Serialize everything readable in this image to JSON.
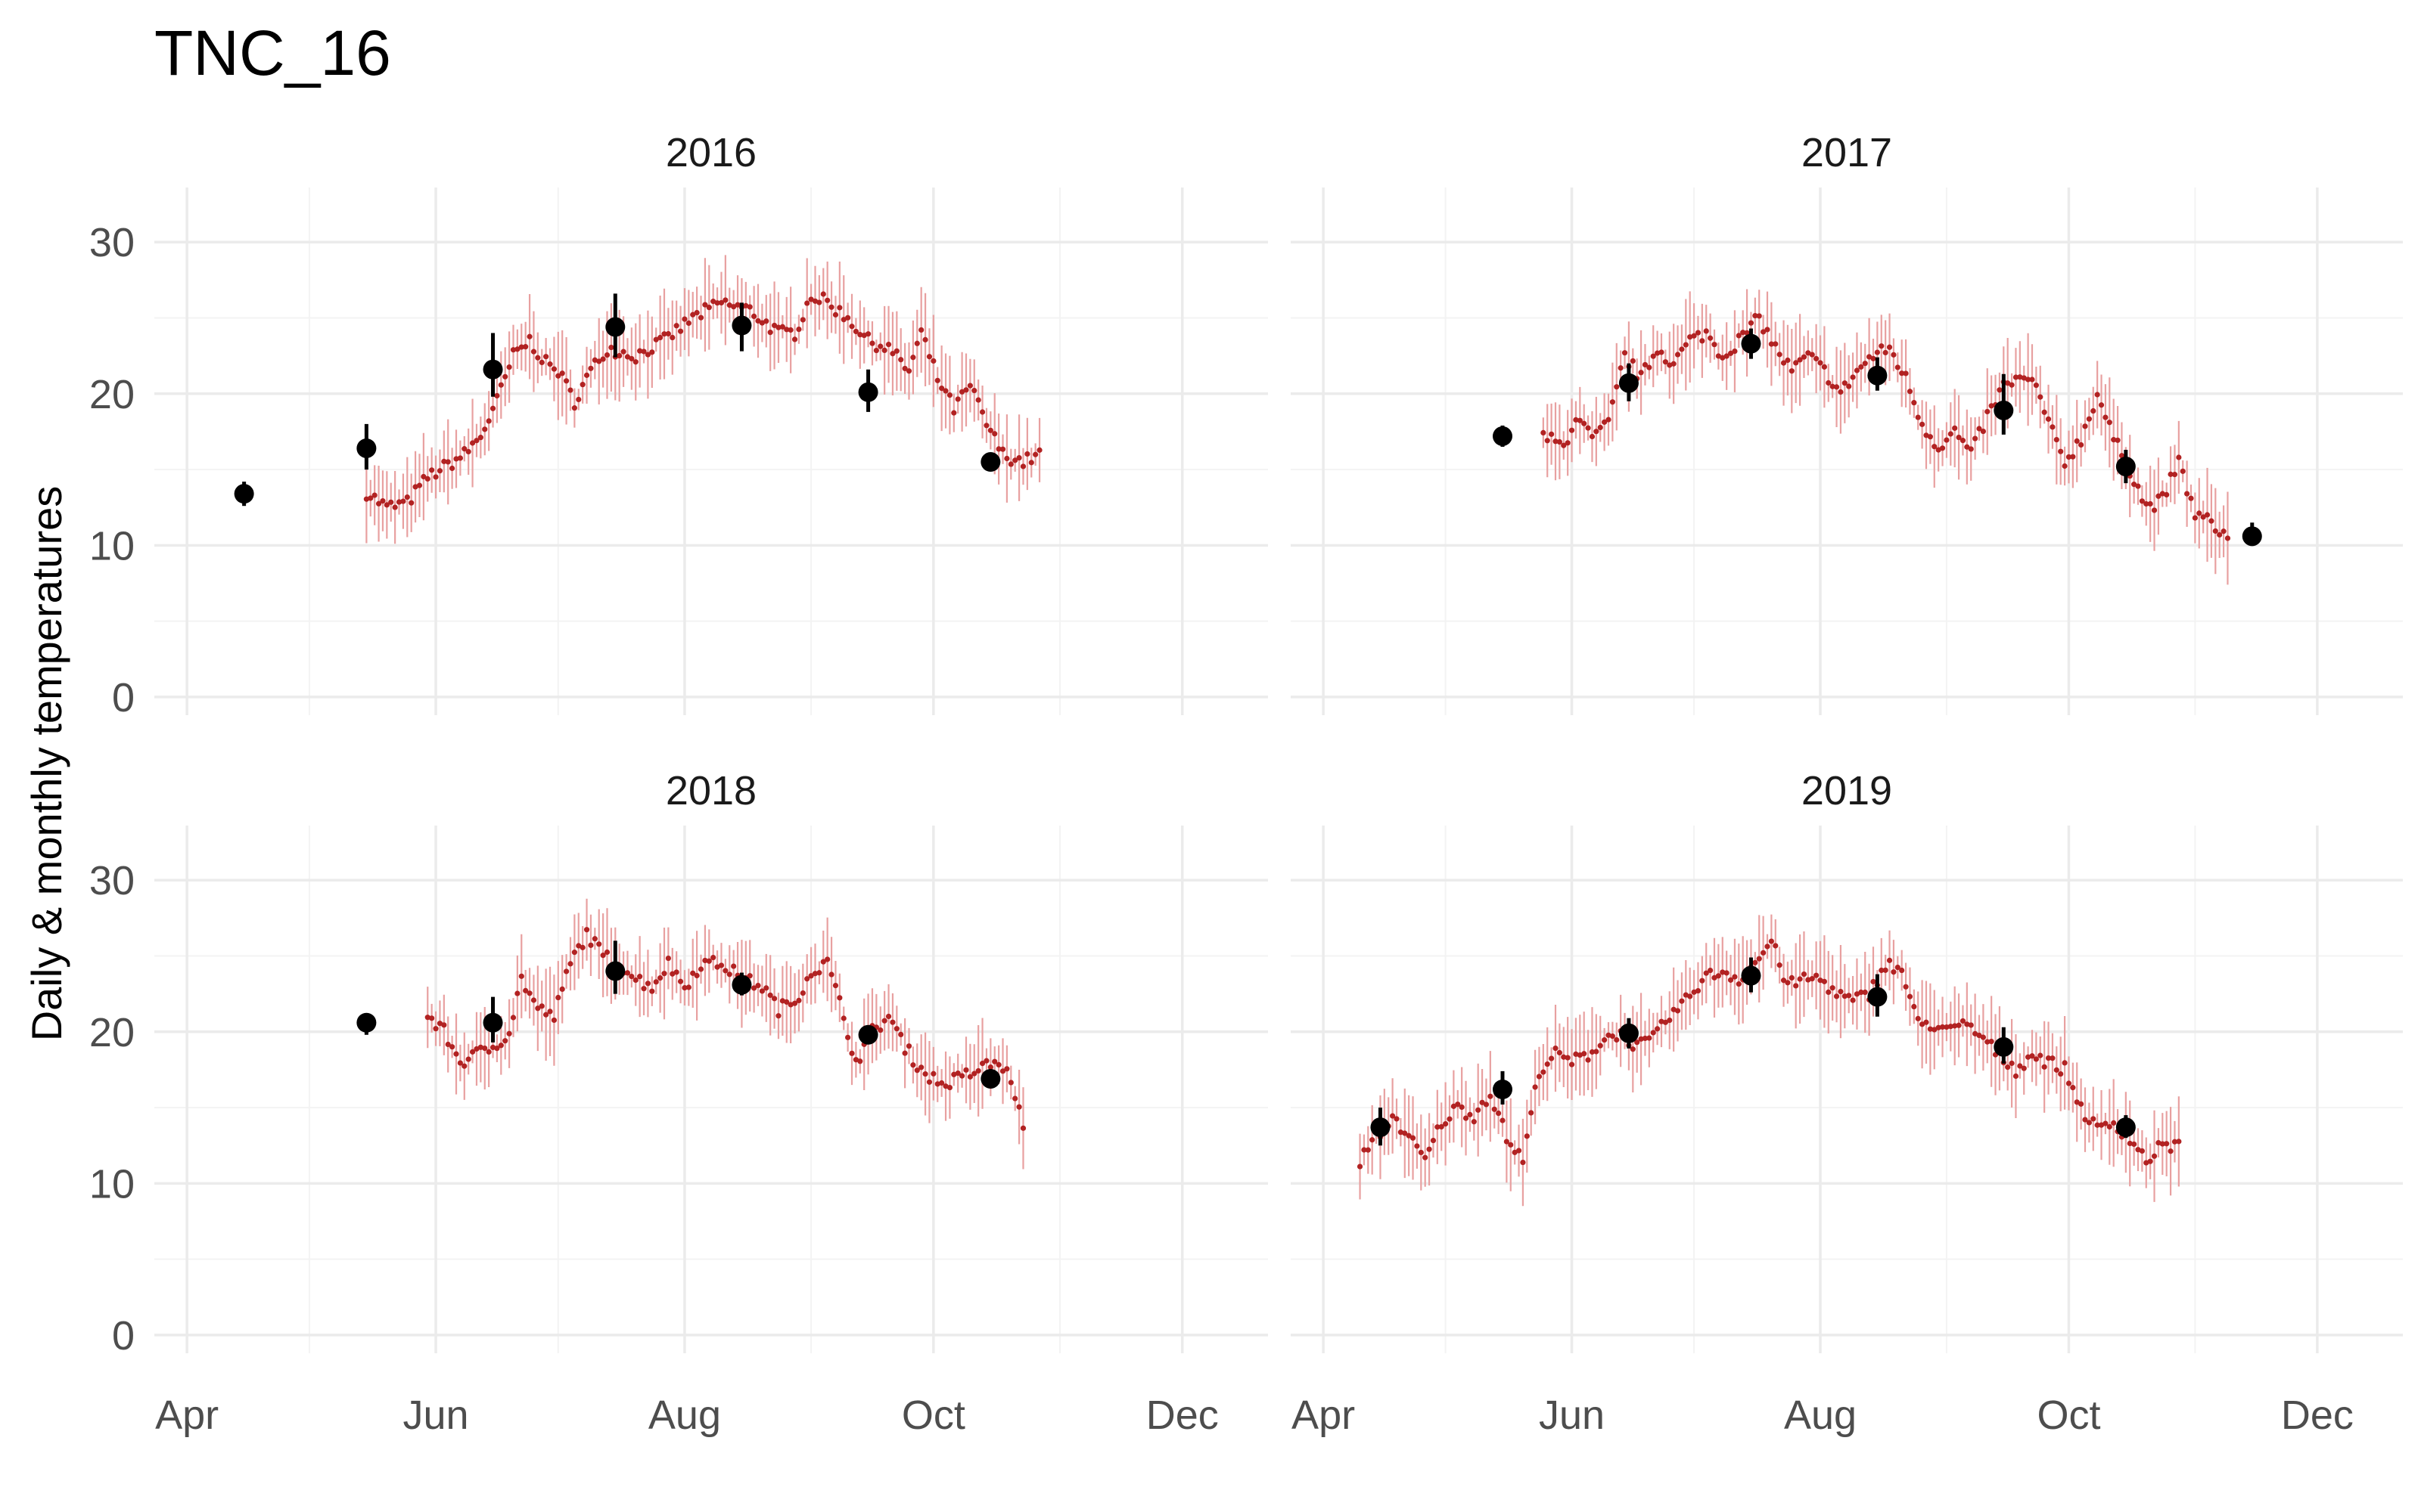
{
  "chart_data": {
    "type": "scatter",
    "title": "TNC_16",
    "ylabel": "Daily & monthly temperatures",
    "xlabel": "",
    "ylim": [
      -1.2,
      33.6
    ],
    "xlim": [
      "2000-03-24",
      "2000-12-22"
    ],
    "y_ticks": [
      0,
      10,
      20,
      30
    ],
    "x_ticks": [
      {
        "label": "Apr",
        "date": "2000-04-01"
      },
      {
        "label": "Jun",
        "date": "2000-06-01"
      },
      {
        "label": "Aug",
        "date": "2000-08-01"
      },
      {
        "label": "Oct",
        "date": "2000-10-01"
      },
      {
        "label": "Dec",
        "date": "2000-12-01"
      }
    ],
    "minor_x_ticks": [
      "2000-05-01",
      "2000-07-01",
      "2000-09-01",
      "2000-11-01"
    ],
    "minor_y_ticks": [
      5,
      15,
      25
    ],
    "grid": true,
    "colors": {
      "daily": "#b22222",
      "daily_range": "#e8a0a0",
      "monthly": "#000000",
      "grid": "#ebebeb"
    },
    "panels": [
      {
        "label": "2016",
        "daily_knots": [
          [
            "05-15",
            13.5
          ],
          [
            "05-20",
            12.5
          ],
          [
            "05-25",
            12.8
          ],
          [
            "05-30",
            14.5
          ],
          [
            "06-04",
            15.3
          ],
          [
            "06-08",
            16.0
          ],
          [
            "06-12",
            17.2
          ],
          [
            "06-16",
            19.5
          ],
          [
            "06-20",
            22.5
          ],
          [
            "06-24",
            23.5
          ],
          [
            "06-28",
            22.0
          ],
          [
            "07-01",
            21.5
          ],
          [
            "07-05",
            19.5
          ],
          [
            "07-09",
            21.5
          ],
          [
            "07-13",
            23.0
          ],
          [
            "07-20",
            22.5
          ],
          [
            "07-27",
            23.5
          ],
          [
            "08-03",
            25.0
          ],
          [
            "08-10",
            26.0
          ],
          [
            "08-17",
            25.5
          ],
          [
            "08-24",
            24.0
          ],
          [
            "08-28",
            24.0
          ],
          [
            "09-01",
            26.5
          ],
          [
            "09-05",
            26.0
          ],
          [
            "09-10",
            25.0
          ],
          [
            "09-15",
            23.5
          ],
          [
            "09-20",
            23.0
          ],
          [
            "09-25",
            21.5
          ],
          [
            "09-28",
            24.0
          ],
          [
            "10-02",
            21.0
          ],
          [
            "10-06",
            19.0
          ],
          [
            "10-10",
            20.5
          ],
          [
            "10-14",
            18.0
          ],
          [
            "10-18",
            16.0
          ],
          [
            "10-23",
            15.5
          ],
          [
            "10-27",
            16.0
          ]
        ],
        "monthly": [
          {
            "date": "04-15",
            "mean": 13.4,
            "low": 12.6,
            "high": 14.2
          },
          {
            "date": "05-15",
            "mean": 16.4,
            "low": 15.0,
            "high": 18.0
          },
          {
            "date": "06-15",
            "mean": 21.6,
            "low": 19.8,
            "high": 24.0
          },
          {
            "date": "07-15",
            "mean": 24.4,
            "low": 22.4,
            "high": 26.6
          },
          {
            "date": "08-15",
            "mean": 24.5,
            "low": 22.8,
            "high": 26.0
          },
          {
            "date": "09-15",
            "mean": 20.1,
            "low": 18.8,
            "high": 21.6
          },
          {
            "date": "10-15",
            "mean": 15.5,
            "low": 15.0,
            "high": 16.0
          }
        ]
      },
      {
        "label": "2017",
        "daily_knots": [
          [
            "05-25",
            17.2
          ],
          [
            "05-30",
            16.5
          ],
          [
            "06-02",
            18.5
          ],
          [
            "06-06",
            17.0
          ],
          [
            "06-10",
            18.0
          ],
          [
            "06-14",
            22.5
          ],
          [
            "06-18",
            21.0
          ],
          [
            "06-22",
            23.0
          ],
          [
            "06-26",
            22.0
          ],
          [
            "06-30",
            23.5
          ],
          [
            "07-04",
            24.0
          ],
          [
            "07-08",
            22.5
          ],
          [
            "07-12",
            23.5
          ],
          [
            "07-17",
            25.0
          ],
          [
            "07-21",
            23.0
          ],
          [
            "07-25",
            21.5
          ],
          [
            "07-29",
            22.5
          ],
          [
            "08-02",
            21.5
          ],
          [
            "08-06",
            20.0
          ],
          [
            "08-10",
            21.5
          ],
          [
            "08-14",
            22.5
          ],
          [
            "08-18",
            23.0
          ],
          [
            "08-22",
            21.0
          ],
          [
            "08-26",
            18.0
          ],
          [
            "08-30",
            16.5
          ],
          [
            "09-03",
            17.5
          ],
          [
            "09-07",
            16.0
          ],
          [
            "09-11",
            18.5
          ],
          [
            "09-15",
            20.5
          ],
          [
            "09-19",
            21.0
          ],
          [
            "09-23",
            20.5
          ],
          [
            "09-26",
            18.0
          ],
          [
            "09-30",
            15.5
          ],
          [
            "10-04",
            17.0
          ],
          [
            "10-08",
            20.0
          ],
          [
            "10-12",
            17.0
          ],
          [
            "10-16",
            15.0
          ],
          [
            "10-20",
            12.5
          ],
          [
            "10-24",
            13.0
          ],
          [
            "10-28",
            15.5
          ],
          [
            "11-01",
            12.0
          ],
          [
            "11-05",
            11.5
          ],
          [
            "11-09",
            10.5
          ]
        ],
        "monthly": [
          {
            "date": "05-15",
            "mean": 17.2,
            "low": 16.5,
            "high": 17.9
          },
          {
            "date": "06-15",
            "mean": 20.7,
            "low": 19.5,
            "high": 22.0
          },
          {
            "date": "07-15",
            "mean": 23.3,
            "low": 22.3,
            "high": 24.3
          },
          {
            "date": "08-15",
            "mean": 21.2,
            "low": 20.2,
            "high": 22.4
          },
          {
            "date": "09-15",
            "mean": 18.9,
            "low": 17.3,
            "high": 21.3
          },
          {
            "date": "10-15",
            "mean": 15.2,
            "low": 14.1,
            "high": 16.3
          },
          {
            "date": "11-15",
            "mean": 10.6,
            "low": 10.0,
            "high": 11.5
          }
        ]
      },
      {
        "label": "2018",
        "daily_knots": [
          [
            "05-30",
            21.0
          ],
          [
            "06-03",
            20.0
          ],
          [
            "06-07",
            18.0
          ],
          [
            "06-11",
            18.5
          ],
          [
            "06-15",
            19.0
          ],
          [
            "06-19",
            20.0
          ],
          [
            "06-22",
            23.5
          ],
          [
            "06-26",
            21.5
          ],
          [
            "06-30",
            21.0
          ],
          [
            "07-04",
            24.5
          ],
          [
            "07-08",
            26.5
          ],
          [
            "07-12",
            25.0
          ],
          [
            "07-16",
            24.5
          ],
          [
            "07-20",
            23.5
          ],
          [
            "07-24",
            23.0
          ],
          [
            "07-28",
            24.5
          ],
          [
            "08-01",
            23.0
          ],
          [
            "08-05",
            24.5
          ],
          [
            "08-10",
            24.5
          ],
          [
            "08-15",
            23.5
          ],
          [
            "08-20",
            23.0
          ],
          [
            "08-24",
            21.5
          ],
          [
            "08-28",
            22.0
          ],
          [
            "09-01",
            24.0
          ],
          [
            "09-05",
            24.5
          ],
          [
            "09-09",
            21.0
          ],
          [
            "09-12",
            18.0
          ],
          [
            "09-16",
            20.0
          ],
          [
            "09-20",
            21.0
          ],
          [
            "09-24",
            19.0
          ],
          [
            "09-28",
            17.5
          ],
          [
            "10-03",
            16.5
          ],
          [
            "10-08",
            17.0
          ],
          [
            "10-12",
            17.5
          ],
          [
            "10-16",
            18.0
          ],
          [
            "10-20",
            17.0
          ],
          [
            "10-23",
            13.5
          ]
        ],
        "monthly": [
          {
            "date": "05-15",
            "mean": 20.6,
            "low": 19.8,
            "high": 21.2
          },
          {
            "date": "06-15",
            "mean": 20.6,
            "low": 19.3,
            "high": 22.3
          },
          {
            "date": "07-15",
            "mean": 24.0,
            "low": 22.5,
            "high": 26.0
          },
          {
            "date": "08-15",
            "mean": 23.1,
            "low": 22.4,
            "high": 23.9
          },
          {
            "date": "09-15",
            "mean": 19.8,
            "low": 19.4,
            "high": 20.2
          },
          {
            "date": "10-15",
            "mean": 16.9,
            "low": 16.6,
            "high": 17.2
          }
        ]
      },
      {
        "label": "2019",
        "daily_knots": [
          [
            "04-10",
            11.5
          ],
          [
            "04-14",
            13.0
          ],
          [
            "04-18",
            14.5
          ],
          [
            "04-22",
            13.0
          ],
          [
            "04-26",
            11.5
          ],
          [
            "04-30",
            14.0
          ],
          [
            "05-04",
            15.0
          ],
          [
            "05-08",
            14.5
          ],
          [
            "05-12",
            16.0
          ],
          [
            "05-16",
            13.0
          ],
          [
            "05-20",
            11.5
          ],
          [
            "05-24",
            17.5
          ],
          [
            "05-28",
            18.5
          ],
          [
            "06-01",
            18.0
          ],
          [
            "06-05",
            18.5
          ],
          [
            "06-09",
            19.5
          ],
          [
            "06-13",
            20.0
          ],
          [
            "06-17",
            19.0
          ],
          [
            "06-21",
            19.5
          ],
          [
            "06-25",
            21.0
          ],
          [
            "06-29",
            22.0
          ],
          [
            "07-03",
            23.5
          ],
          [
            "07-08",
            24.0
          ],
          [
            "07-12",
            23.5
          ],
          [
            "07-16",
            24.5
          ],
          [
            "07-20",
            26.0
          ],
          [
            "07-24",
            23.0
          ],
          [
            "07-28",
            23.5
          ],
          [
            "08-01",
            23.5
          ],
          [
            "08-05",
            22.5
          ],
          [
            "08-09",
            22.0
          ],
          [
            "08-13",
            22.5
          ],
          [
            "08-17",
            24.5
          ],
          [
            "08-21",
            24.0
          ],
          [
            "08-25",
            20.5
          ],
          [
            "08-29",
            20.5
          ],
          [
            "09-02",
            20.0
          ],
          [
            "09-06",
            20.5
          ],
          [
            "09-10",
            19.5
          ],
          [
            "09-14",
            18.5
          ],
          [
            "09-18",
            17.5
          ],
          [
            "09-22",
            18.5
          ],
          [
            "09-26",
            18.0
          ],
          [
            "09-30",
            17.5
          ],
          [
            "10-04",
            15.0
          ],
          [
            "10-08",
            13.5
          ],
          [
            "10-12",
            14.0
          ],
          [
            "10-16",
            13.0
          ],
          [
            "10-20",
            11.5
          ],
          [
            "10-24",
            12.5
          ],
          [
            "10-28",
            12.5
          ]
        ],
        "monthly": [
          {
            "date": "04-15",
            "mean": 13.7,
            "low": 12.5,
            "high": 15.0
          },
          {
            "date": "05-15",
            "mean": 16.2,
            "low": 15.2,
            "high": 17.4
          },
          {
            "date": "06-15",
            "mean": 19.9,
            "low": 18.9,
            "high": 20.9
          },
          {
            "date": "07-15",
            "mean": 23.7,
            "low": 22.6,
            "high": 24.9
          },
          {
            "date": "08-15",
            "mean": 22.3,
            "low": 21.0,
            "high": 23.8
          },
          {
            "date": "09-15",
            "mean": 19.0,
            "low": 17.9,
            "high": 20.3
          },
          {
            "date": "10-15",
            "mean": 13.7,
            "low": 13.0,
            "high": 14.5
          }
        ]
      }
    ]
  }
}
